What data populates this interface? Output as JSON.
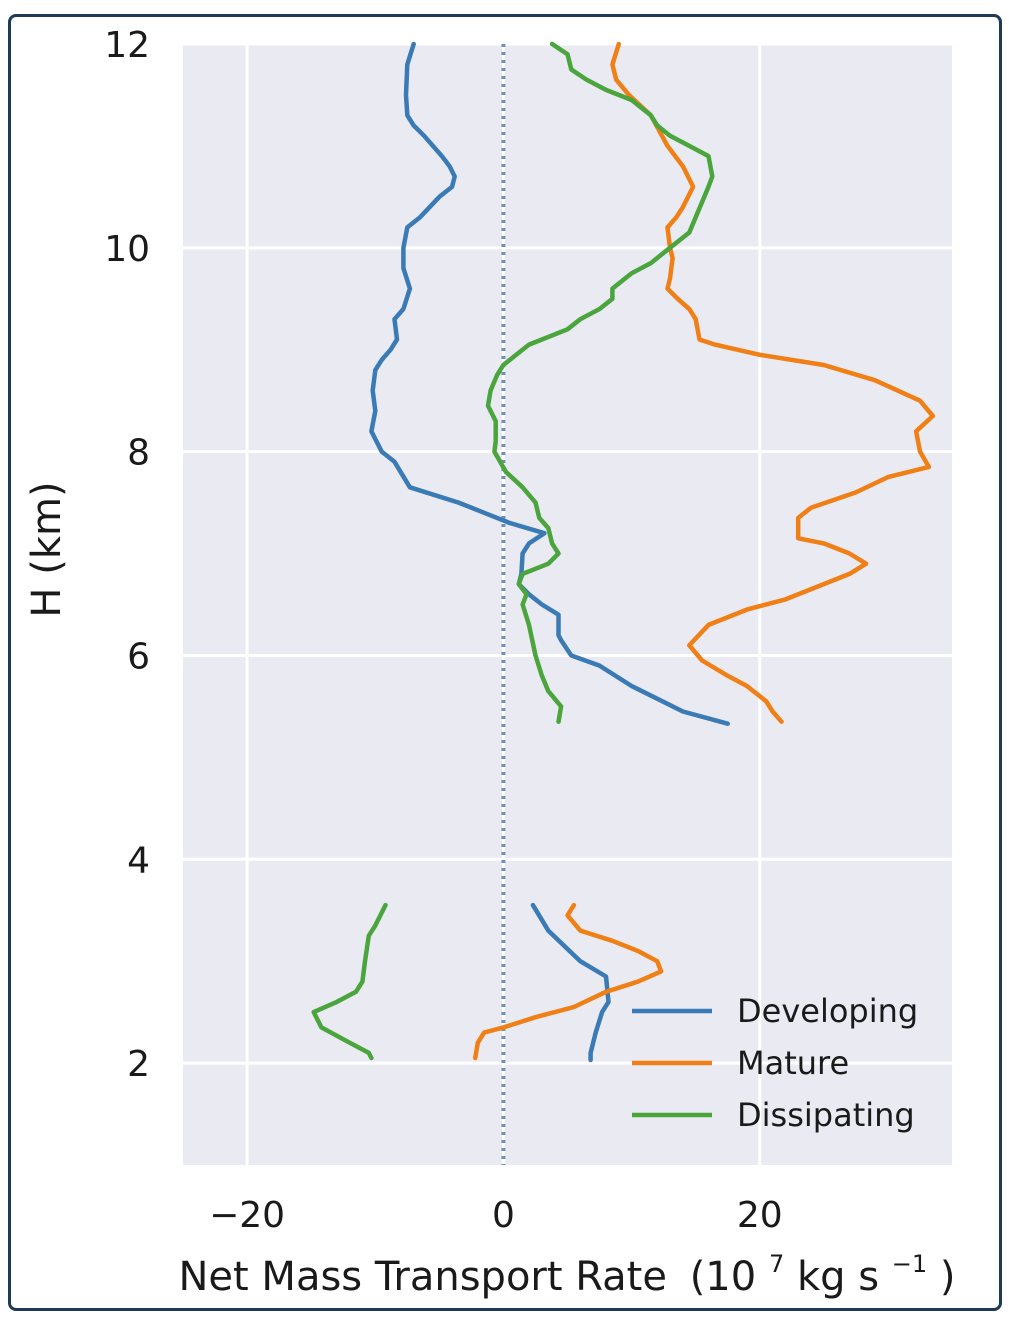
{
  "chart_data": {
    "type": "line",
    "xlabel": "Net Mass Transport Rate",
    "xlabel_unit_base": "(10",
    "xlabel_unit_exp": "7",
    "xlabel_unit_mid": " kg s",
    "xlabel_unit_exp2": "−1",
    "xlabel_unit_close": ")",
    "ylabel": "H (km)",
    "xlim": [
      -25,
      35
    ],
    "ylim": [
      1,
      12
    ],
    "xticks": [
      -20,
      0,
      20
    ],
    "xtick_labels": [
      "−20",
      "0",
      "20"
    ],
    "yticks": [
      2,
      4,
      6,
      8,
      10,
      12
    ],
    "ytick_labels": [
      "2",
      "4",
      "6",
      "8",
      "10",
      "12"
    ],
    "grid": true,
    "background": "#eaeaf2",
    "zero_line": {
      "x": 0,
      "style": "dotted",
      "color": "#6f8fc0"
    },
    "legend_position": "lower-right",
    "series": [
      {
        "name": "Developing",
        "color": "#3a7ab5",
        "segments": [
          [
            [
              -7,
              12.0
            ],
            [
              -7.5,
              11.8
            ],
            [
              -7.6,
              11.5
            ],
            [
              -7.5,
              11.3
            ],
            [
              -7.0,
              11.2
            ],
            [
              -6.2,
              11.1
            ],
            [
              -5.5,
              11.0
            ],
            [
              -4.8,
              10.9
            ],
            [
              -4.2,
              10.8
            ],
            [
              -3.8,
              10.7
            ],
            [
              -4.0,
              10.6
            ],
            [
              -5.0,
              10.5
            ],
            [
              -6.5,
              10.3
            ],
            [
              -7.5,
              10.2
            ],
            [
              -7.8,
              10.0
            ],
            [
              -7.8,
              9.8
            ],
            [
              -7.3,
              9.6
            ],
            [
              -7.8,
              9.4
            ],
            [
              -8.5,
              9.3
            ],
            [
              -8.3,
              9.1
            ],
            [
              -8.8,
              9.0
            ],
            [
              -9.5,
              8.9
            ],
            [
              -10.0,
              8.8
            ],
            [
              -10.2,
              8.6
            ],
            [
              -10.0,
              8.4
            ],
            [
              -10.3,
              8.2
            ],
            [
              -9.9,
              8.1
            ],
            [
              -9.5,
              8.0
            ],
            [
              -8.5,
              7.9
            ],
            [
              -7.3,
              7.65
            ],
            [
              -3.5,
              7.5
            ],
            [
              -1.5,
              7.4
            ],
            [
              0.5,
              7.3
            ],
            [
              3.2,
              7.2
            ],
            [
              2.0,
              7.1
            ],
            [
              1.5,
              7.0
            ],
            [
              1.4,
              6.8
            ],
            [
              1.2,
              6.7
            ],
            [
              2.0,
              6.6
            ],
            [
              3.0,
              6.5
            ],
            [
              4.3,
              6.4
            ],
            [
              4.3,
              6.2
            ],
            [
              4.5,
              6.15
            ],
            [
              5.3,
              6.0
            ],
            [
              7.5,
              5.9
            ],
            [
              10.0,
              5.7
            ],
            [
              14.0,
              5.45
            ],
            [
              17.5,
              5.33
            ]
          ],
          [
            [
              2.3,
              3.55
            ],
            [
              3.5,
              3.3
            ],
            [
              6.0,
              3.0
            ],
            [
              8.0,
              2.85
            ],
            [
              8.2,
              2.6
            ],
            [
              7.7,
              2.5
            ],
            [
              7.2,
              2.3
            ],
            [
              6.8,
              2.1
            ],
            [
              6.8,
              2.03
            ]
          ]
        ]
      },
      {
        "name": "Mature",
        "color": "#f07f16",
        "segments": [
          [
            [
              9.0,
              12.0
            ],
            [
              8.5,
              11.8
            ],
            [
              8.8,
              11.65
            ],
            [
              9.8,
              11.5
            ],
            [
              11.5,
              11.3
            ],
            [
              12.8,
              11.0
            ],
            [
              14.0,
              10.8
            ],
            [
              14.8,
              10.6
            ],
            [
              14.0,
              10.4
            ],
            [
              13.5,
              10.3
            ],
            [
              12.8,
              10.2
            ],
            [
              13.0,
              10.0
            ],
            [
              13.2,
              9.9
            ],
            [
              13.0,
              9.7
            ],
            [
              12.8,
              9.6
            ],
            [
              13.6,
              9.5
            ],
            [
              14.5,
              9.4
            ],
            [
              15.0,
              9.3
            ],
            [
              15.3,
              9.1
            ],
            [
              16.5,
              9.05
            ],
            [
              20.0,
              8.95
            ],
            [
              25.0,
              8.85
            ],
            [
              29.0,
              8.7
            ],
            [
              32.5,
              8.5
            ],
            [
              33.5,
              8.35
            ],
            [
              32.2,
              8.2
            ],
            [
              32.5,
              8.0
            ],
            [
              33.2,
              7.85
            ],
            [
              30.0,
              7.75
            ],
            [
              27.5,
              7.6
            ],
            [
              24.0,
              7.45
            ],
            [
              23.0,
              7.35
            ],
            [
              23.0,
              7.15
            ],
            [
              25.0,
              7.1
            ],
            [
              27.0,
              7.0
            ],
            [
              28.3,
              6.9
            ],
            [
              27.0,
              6.8
            ],
            [
              25.0,
              6.7
            ],
            [
              22.0,
              6.55
            ],
            [
              19.0,
              6.45
            ],
            [
              16.0,
              6.3
            ],
            [
              14.5,
              6.1
            ],
            [
              15.5,
              5.95
            ],
            [
              17.5,
              5.8
            ],
            [
              19.0,
              5.7
            ],
            [
              20.5,
              5.55
            ],
            [
              21.0,
              5.45
            ],
            [
              21.7,
              5.35
            ]
          ],
          [
            [
              5.5,
              3.55
            ],
            [
              5.0,
              3.45
            ],
            [
              6.0,
              3.3
            ],
            [
              8.5,
              3.2
            ],
            [
              10.5,
              3.1
            ],
            [
              12.0,
              3.0
            ],
            [
              12.3,
              2.9
            ],
            [
              10.5,
              2.8
            ],
            [
              8.0,
              2.7
            ],
            [
              5.5,
              2.55
            ],
            [
              2.5,
              2.45
            ],
            [
              0,
              2.35
            ],
            [
              -1.5,
              2.3
            ],
            [
              -2.0,
              2.2
            ],
            [
              -2.2,
              2.05
            ]
          ]
        ]
      },
      {
        "name": "Dissipating",
        "color": "#49a53c",
        "segments": [
          [
            [
              3.8,
              12.0
            ],
            [
              5.0,
              11.9
            ],
            [
              5.3,
              11.75
            ],
            [
              6.5,
              11.65
            ],
            [
              8.0,
              11.55
            ],
            [
              10.0,
              11.45
            ],
            [
              11.5,
              11.3
            ],
            [
              12.0,
              11.2
            ],
            [
              13.0,
              11.1
            ],
            [
              14.5,
              11.0
            ],
            [
              16.0,
              10.9
            ],
            [
              16.3,
              10.7
            ],
            [
              16.0,
              10.6
            ],
            [
              15.5,
              10.45
            ],
            [
              15.0,
              10.3
            ],
            [
              14.5,
              10.15
            ],
            [
              13.0,
              10.0
            ],
            [
              11.5,
              9.85
            ],
            [
              10.0,
              9.75
            ],
            [
              8.5,
              9.6
            ],
            [
              8.5,
              9.5
            ],
            [
              7.5,
              9.4
            ],
            [
              6.0,
              9.3
            ],
            [
              5.0,
              9.2
            ],
            [
              3.0,
              9.1
            ],
            [
              2.0,
              9.05
            ],
            [
              1.0,
              8.95
            ],
            [
              0,
              8.85
            ],
            [
              -0.5,
              8.75
            ],
            [
              -1.0,
              8.6
            ],
            [
              -1.2,
              8.45
            ],
            [
              -0.6,
              8.3
            ],
            [
              -0.6,
              8.1
            ],
            [
              -0.7,
              8.0
            ],
            [
              0.2,
              7.8
            ],
            [
              1.5,
              7.65
            ],
            [
              2.5,
              7.5
            ],
            [
              2.8,
              7.35
            ],
            [
              3.5,
              7.25
            ],
            [
              3.8,
              7.1
            ],
            [
              4.3,
              7.0
            ],
            [
              3.5,
              6.9
            ],
            [
              2.5,
              6.85
            ],
            [
              1.5,
              6.8
            ],
            [
              1.2,
              6.7
            ],
            [
              1.8,
              6.6
            ],
            [
              1.5,
              6.5
            ],
            [
              2.0,
              6.3
            ],
            [
              2.5,
              6.0
            ],
            [
              3.0,
              5.8
            ],
            [
              3.5,
              5.65
            ],
            [
              4.5,
              5.5
            ],
            [
              4.3,
              5.35
            ]
          ],
          [
            [
              -9.2,
              3.55
            ],
            [
              -10.0,
              3.35
            ],
            [
              -10.5,
              3.25
            ],
            [
              -10.8,
              3.0
            ],
            [
              -11.0,
              2.8
            ],
            [
              -11.5,
              2.7
            ],
            [
              -13.0,
              2.6
            ],
            [
              -14.8,
              2.5
            ],
            [
              -14.2,
              2.35
            ],
            [
              -12.0,
              2.2
            ],
            [
              -10.5,
              2.1
            ],
            [
              -10.3,
              2.05
            ]
          ]
        ]
      }
    ]
  }
}
